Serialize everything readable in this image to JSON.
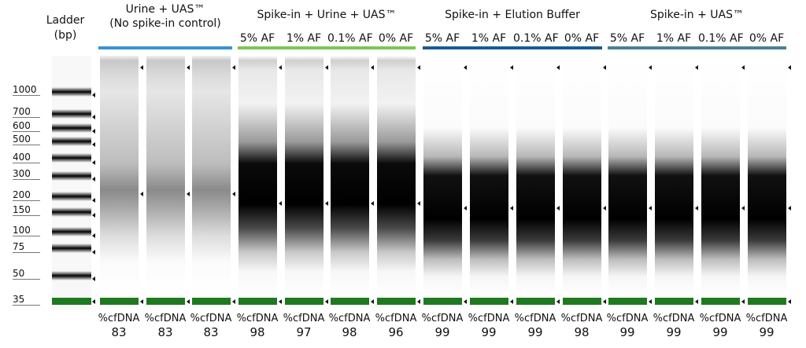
{
  "ladder": {
    "title_line1": "Ladder",
    "title_line2": "(bp)",
    "sizes": [
      "1000",
      "700",
      "600",
      "500",
      "400",
      "300",
      "200",
      "150",
      "100",
      "75",
      "50",
      "35"
    ]
  },
  "groups": [
    {
      "title_line1": "Urine + UAS™",
      "title_line2": "(No spike-in control)",
      "color": "#3a93d1"
    },
    {
      "title_line1": "Spike-in + Urine + UAS™",
      "color": "#7cc45a"
    },
    {
      "title_line1": "Spike-in + Elution Buffer",
      "color": "#1b5b92"
    },
    {
      "title_line1": "Spike-in + UAS™",
      "color": "#4b8193"
    }
  ],
  "lane_labels": [
    "5% AF",
    "1% AF",
    "0.1% AF",
    "0% AF",
    "5% AF",
    "1% AF",
    "0.1% AF",
    "0% AF",
    "5% AF",
    "1% AF",
    "0.1% AF",
    "0% AF"
  ],
  "lanes": [
    {
      "pct_label": "%cfDNA",
      "value": "83"
    },
    {
      "pct_label": "%cfDNA",
      "value": "83"
    },
    {
      "pct_label": "%cfDNA",
      "value": "83"
    },
    {
      "pct_label": "%cfDNA",
      "value": "98"
    },
    {
      "pct_label": "%cfDNA",
      "value": "97"
    },
    {
      "pct_label": "%cfDNA",
      "value": "98"
    },
    {
      "pct_label": "%cfDNA",
      "value": "96"
    },
    {
      "pct_label": "%cfDNA",
      "value": "99"
    },
    {
      "pct_label": "%cfDNA",
      "value": "99"
    },
    {
      "pct_label": "%cfDNA",
      "value": "99"
    },
    {
      "pct_label": "%cfDNA",
      "value": "98"
    },
    {
      "pct_label": "%cfDNA",
      "value": "99"
    },
    {
      "pct_label": "%cfDNA",
      "value": "99"
    },
    {
      "pct_label": "%cfDNA",
      "value": "99"
    },
    {
      "pct_label": "%cfDNA",
      "value": "99"
    }
  ],
  "colors": {
    "marker_band": "#1f7a1f",
    "accent_dot": "#e06a1b"
  }
}
